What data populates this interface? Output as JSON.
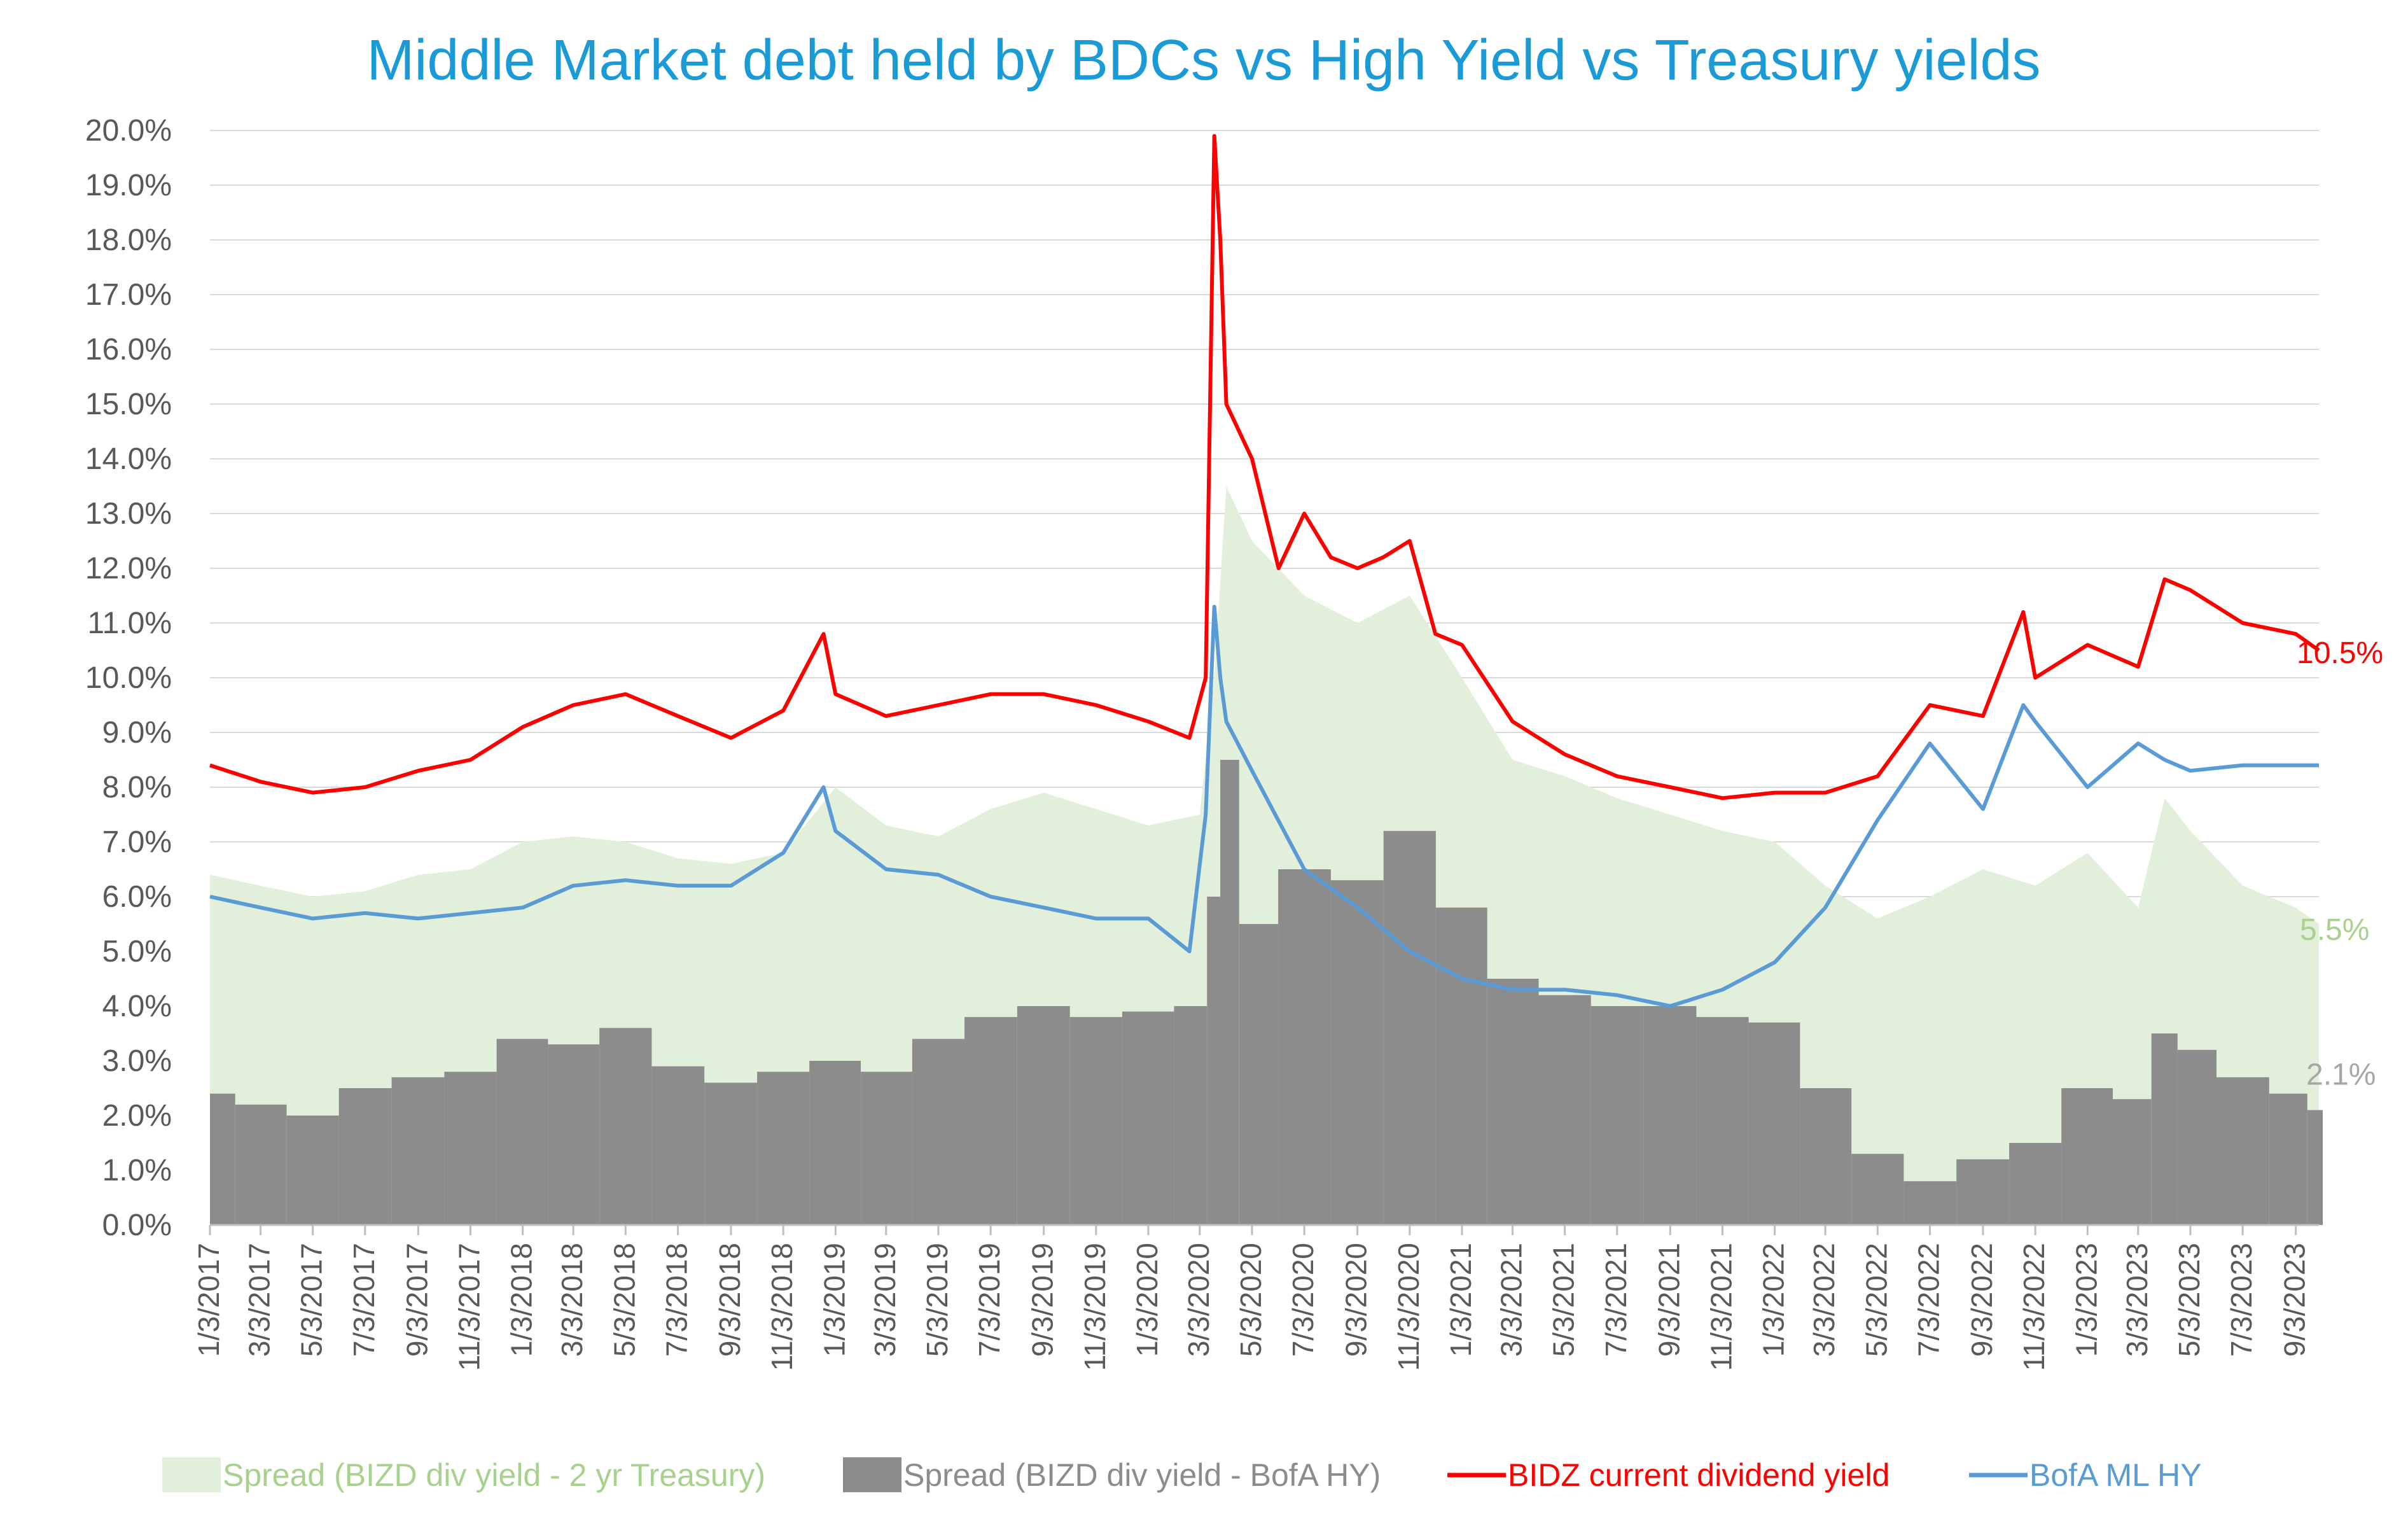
{
  "chart_data": {
    "type": "area",
    "title": "Middle Market debt held by BDCs vs High Yield vs Treasury yields",
    "y_ticks": [
      "0.0%",
      "1.0%",
      "2.0%",
      "3.0%",
      "4.0%",
      "5.0%",
      "6.0%",
      "7.0%",
      "8.0%",
      "9.0%",
      "10.0%",
      "11.0%",
      "12.0%",
      "13.0%",
      "14.0%",
      "15.0%",
      "16.0%",
      "17.0%",
      "18.0%",
      "19.0%",
      "20.0%"
    ],
    "ylim": [
      0,
      20
    ],
    "x_ticks": [
      "1/3/2017",
      "3/3/2017",
      "5/3/2017",
      "7/3/2017",
      "9/3/2017",
      "11/3/2017",
      "1/3/2018",
      "3/3/2018",
      "5/3/2018",
      "7/3/2018",
      "9/3/2018",
      "11/3/2018",
      "1/3/2019",
      "3/3/2019",
      "5/3/2019",
      "7/3/2019",
      "9/3/2019",
      "11/3/2019",
      "1/3/2020",
      "3/3/2020",
      "5/3/2020",
      "7/3/2020",
      "9/3/2020",
      "11/3/2020",
      "1/3/2021",
      "3/3/2021",
      "5/3/2021",
      "7/3/2021",
      "9/3/2021",
      "11/3/2021",
      "1/3/2022",
      "3/3/2022",
      "5/3/2022",
      "7/3/2022",
      "9/3/2022",
      "11/3/2022",
      "1/3/2023",
      "3/3/2023",
      "5/3/2023",
      "7/3/2023",
      "9/3/2023"
    ],
    "grid": true,
    "legend_position": "bottom",
    "series": [
      {
        "name": "Spread (BIZD div yield - 2 yr Treasury)",
        "kind": "area",
        "color": "#E2EFDA",
        "x": [
          "1/3/2017",
          "3/3/2017",
          "5/3/2017",
          "7/3/2017",
          "9/3/2017",
          "11/3/2017",
          "1/3/2018",
          "3/3/2018",
          "5/3/2018",
          "7/3/2018",
          "9/3/2018",
          "11/3/2018",
          "1/3/2019",
          "3/3/2019",
          "5/3/2019",
          "7/3/2019",
          "9/3/2019",
          "11/3/2019",
          "1/3/2020",
          "3/3/2020",
          "3/20/2020",
          "4/3/2020",
          "5/3/2020",
          "7/3/2020",
          "9/3/2020",
          "11/3/2020",
          "1/3/2021",
          "3/3/2021",
          "5/3/2021",
          "7/3/2021",
          "9/3/2021",
          "11/3/2021",
          "1/3/2022",
          "3/3/2022",
          "5/3/2022",
          "7/3/2022",
          "9/3/2022",
          "11/3/2022",
          "1/3/2023",
          "3/3/2023",
          "4/3/2023",
          "5/3/2023",
          "7/3/2023",
          "9/3/2023",
          "9/30/2023"
        ],
        "values": [
          6.4,
          6.2,
          6.0,
          6.1,
          6.4,
          6.5,
          7.0,
          7.1,
          7.0,
          6.7,
          6.6,
          6.8,
          8.0,
          7.3,
          7.1,
          7.6,
          7.9,
          7.6,
          7.3,
          7.5,
          10.0,
          13.5,
          12.5,
          11.5,
          11.0,
          11.5,
          10.0,
          8.5,
          8.2,
          7.8,
          7.5,
          7.2,
          7.0,
          6.2,
          5.6,
          6.0,
          6.5,
          6.2,
          6.8,
          5.8,
          7.8,
          7.2,
          6.2,
          5.8,
          5.5
        ]
      },
      {
        "name": "Spread (BIZD div yield - BofA HY)",
        "kind": "bar",
        "color": "#8C8C8C",
        "x": [
          "1/3/2017",
          "3/3/2017",
          "5/3/2017",
          "7/3/2017",
          "9/3/2017",
          "11/3/2017",
          "1/3/2018",
          "3/3/2018",
          "5/3/2018",
          "7/3/2018",
          "9/3/2018",
          "11/3/2018",
          "1/3/2019",
          "3/3/2019",
          "5/3/2019",
          "7/3/2019",
          "9/3/2019",
          "11/3/2019",
          "1/3/2020",
          "3/3/2020",
          "3/20/2020",
          "4/3/2020",
          "5/3/2020",
          "7/3/2020",
          "9/3/2020",
          "11/3/2020",
          "1/3/2021",
          "3/3/2021",
          "5/3/2021",
          "7/3/2021",
          "9/3/2021",
          "11/3/2021",
          "1/3/2022",
          "3/3/2022",
          "5/3/2022",
          "7/3/2022",
          "9/3/2022",
          "11/3/2022",
          "1/3/2023",
          "3/3/2023",
          "4/3/2023",
          "5/3/2023",
          "7/3/2023",
          "9/3/2023",
          "9/30/2023"
        ],
        "values": [
          2.4,
          2.2,
          2.0,
          2.5,
          2.7,
          2.8,
          3.4,
          3.3,
          3.6,
          2.9,
          2.6,
          2.8,
          3.0,
          2.8,
          3.4,
          3.8,
          4.0,
          3.8,
          3.9,
          4.0,
          6.0,
          8.5,
          5.5,
          6.5,
          6.3,
          7.2,
          5.8,
          4.5,
          4.2,
          4.0,
          4.0,
          3.8,
          3.7,
          2.5,
          1.3,
          0.8,
          1.2,
          1.5,
          2.5,
          2.3,
          3.5,
          3.2,
          2.7,
          2.4,
          2.1
        ]
      },
      {
        "name": "BIDZ current dividend yield",
        "kind": "line",
        "color": "#FF0000",
        "x": [
          "1/3/2017",
          "3/3/2017",
          "5/3/2017",
          "7/3/2017",
          "9/3/2017",
          "11/3/2017",
          "1/3/2018",
          "3/3/2018",
          "5/3/2018",
          "7/3/2018",
          "9/3/2018",
          "11/3/2018",
          "12/20/2018",
          "1/3/2019",
          "3/3/2019",
          "5/3/2019",
          "7/3/2019",
          "9/3/2019",
          "11/3/2019",
          "1/3/2020",
          "2/20/2020",
          "3/10/2020",
          "3/20/2020",
          "3/27/2020",
          "4/3/2020",
          "5/3/2020",
          "6/3/2020",
          "7/3/2020",
          "8/3/2020",
          "9/3/2020",
          "10/3/2020",
          "11/3/2020",
          "12/3/2020",
          "1/3/2021",
          "3/3/2021",
          "5/3/2021",
          "7/3/2021",
          "9/3/2021",
          "11/3/2021",
          "1/3/2022",
          "3/3/2022",
          "5/3/2022",
          "7/3/2022",
          "9/3/2022",
          "10/20/2022",
          "11/3/2022",
          "1/3/2023",
          "3/3/2023",
          "4/3/2023",
          "5/3/2023",
          "7/3/2023",
          "9/3/2023",
          "9/30/2023"
        ],
        "values": [
          8.4,
          8.1,
          7.9,
          8.0,
          8.3,
          8.5,
          9.1,
          9.5,
          9.7,
          9.3,
          8.9,
          9.4,
          10.8,
          9.7,
          9.3,
          9.5,
          9.7,
          9.7,
          9.5,
          9.2,
          8.9,
          10.0,
          19.9,
          18.0,
          15.0,
          14.0,
          12.0,
          13.0,
          12.2,
          12.0,
          12.2,
          12.5,
          10.8,
          10.6,
          9.2,
          8.6,
          8.2,
          8.0,
          7.8,
          7.9,
          7.9,
          8.2,
          9.5,
          9.3,
          11.2,
          10.0,
          10.6,
          10.2,
          11.8,
          11.6,
          11.0,
          10.8,
          10.5
        ]
      },
      {
        "name": "BofA ML HY",
        "kind": "line",
        "color": "#5B9BD5",
        "x": [
          "1/3/2017",
          "3/3/2017",
          "5/3/2017",
          "7/3/2017",
          "9/3/2017",
          "11/3/2017",
          "1/3/2018",
          "3/3/2018",
          "5/3/2018",
          "7/3/2018",
          "9/3/2018",
          "11/3/2018",
          "12/20/2018",
          "1/3/2019",
          "3/3/2019",
          "5/3/2019",
          "7/3/2019",
          "9/3/2019",
          "11/3/2019",
          "1/3/2020",
          "2/20/2020",
          "3/10/2020",
          "3/20/2020",
          "3/27/2020",
          "4/3/2020",
          "5/3/2020",
          "7/3/2020",
          "9/3/2020",
          "11/3/2020",
          "1/3/2021",
          "3/3/2021",
          "5/3/2021",
          "7/3/2021",
          "9/3/2021",
          "11/3/2021",
          "1/3/2022",
          "3/3/2022",
          "5/3/2022",
          "7/3/2022",
          "9/3/2022",
          "10/20/2022",
          "11/3/2022",
          "1/3/2023",
          "3/3/2023",
          "4/3/2023",
          "5/3/2023",
          "7/3/2023",
          "9/3/2023",
          "9/30/2023"
        ],
        "values": [
          6.0,
          5.8,
          5.6,
          5.7,
          5.6,
          5.7,
          5.8,
          6.2,
          6.3,
          6.2,
          6.2,
          6.8,
          8.0,
          7.2,
          6.5,
          6.4,
          6.0,
          5.8,
          5.6,
          5.6,
          5.0,
          7.5,
          11.3,
          10.0,
          9.2,
          8.3,
          6.5,
          5.8,
          5.0,
          4.5,
          4.3,
          4.3,
          4.2,
          4.0,
          4.3,
          4.8,
          5.8,
          7.4,
          8.8,
          7.6,
          9.5,
          9.2,
          8.0,
          8.8,
          8.5,
          8.3,
          8.4,
          8.4,
          8.4
        ]
      }
    ],
    "end_labels": [
      "10.5%",
      "5.5%",
      "2.1%"
    ]
  }
}
